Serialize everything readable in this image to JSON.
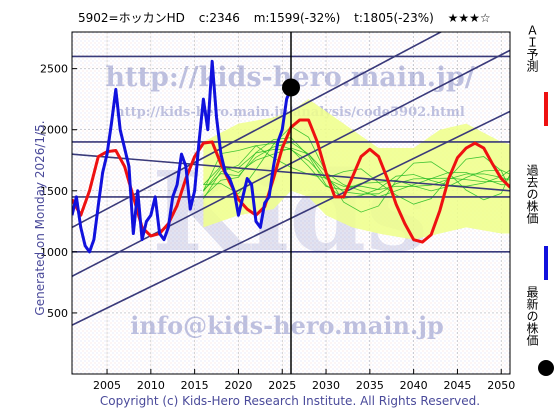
{
  "header": {
    "code_name": "5902=ホッカンHD",
    "current": "c:2346",
    "middle": "m:1599(-32%)",
    "target": "t:1805(-23%)",
    "rating": "★★★☆"
  },
  "side_note": "Generated on Monday 2026/1/5.",
  "footer": {
    "copyright": "Copyright (c) Kids-Hero Research Institute. All Rights Reserved."
  },
  "watermarks": {
    "url1": "http://kids-hero.main.jp/",
    "url2": "http://kids-hero.main.jp/analysis/code5902.html",
    "email": "info@kids-hero.main.jp",
    "big": "Kids"
  },
  "legend": {
    "ai_label": "ＡＩ予測",
    "past_label": "過去の株価",
    "latest_label": "最新の株価"
  },
  "colors": {
    "ai": "#ee1111",
    "past": "#1111dd",
    "ensemble": "#22bb22",
    "band": "#eeff88",
    "trend": "#3a3a7a",
    "grid": "#aaaaaa"
  },
  "chart_data": {
    "type": "line",
    "xlim": [
      2001,
      2051
    ],
    "ylim": [
      0,
      2800
    ],
    "x_ticks": [
      2005,
      2010,
      2015,
      2020,
      2025,
      2030,
      2035,
      2040,
      2045,
      2050
    ],
    "y_ticks": [
      500,
      1000,
      1500,
      2000,
      2500
    ],
    "grid": true,
    "current_marker": {
      "x": 2026.0,
      "y": 2346
    },
    "current_date_line": 2026.0,
    "horizontal_levels": [
      2600,
      1900,
      1450,
      1000
    ],
    "trend_lines": [
      {
        "x": [
          2001,
          2051
        ],
        "y": [
          1200,
          3100
        ]
      },
      {
        "x": [
          2001,
          2051
        ],
        "y": [
          800,
          2650
        ]
      },
      {
        "x": [
          2001,
          2051
        ],
        "y": [
          400,
          2150
        ]
      },
      {
        "x": [
          2001,
          2051
        ],
        "y": [
          1800,
          1500
        ]
      }
    ],
    "band": {
      "x": [
        2016,
        2020,
        2024,
        2026,
        2028,
        2030,
        2033,
        2036,
        2040,
        2043,
        2046,
        2050,
        2051
      ],
      "upper": [
        1900,
        2050,
        2100,
        2150,
        2250,
        2150,
        2000,
        1850,
        1850,
        2000,
        2050,
        1900,
        1880
      ],
      "lower": [
        1200,
        1300,
        1350,
        1500,
        1450,
        1300,
        1200,
        1150,
        1100,
        1150,
        1200,
        1150,
        1150
      ]
    },
    "ensemble_mean": {
      "x": [
        2016,
        2018,
        2020,
        2022,
        2024,
        2026,
        2028,
        2030,
        2032,
        2034,
        2036,
        2038,
        2040,
        2042,
        2044,
        2046,
        2048,
        2050,
        2051
      ],
      "y": [
        1550,
        1700,
        1650,
        1750,
        1800,
        1850,
        1800,
        1650,
        1550,
        1500,
        1450,
        1500,
        1550,
        1600,
        1650,
        1650,
        1600,
        1550,
        1550
      ]
    },
    "series": [
      {
        "name": "ＡＩ予測",
        "x": [
          2001,
          2002,
          2003,
          2004,
          2005,
          2006,
          2007,
          2008,
          2009,
          2010,
          2011,
          2012,
          2013,
          2014,
          2015,
          2016,
          2017,
          2018,
          2019,
          2020,
          2021,
          2022,
          2023,
          2024,
          2025,
          2026,
          2027,
          2028,
          2029,
          2030,
          2031,
          2032,
          2033,
          2034,
          2035,
          2036,
          2037,
          2038,
          2039,
          2040,
          2041,
          2042,
          2043,
          2044,
          2045,
          2046,
          2047,
          2048,
          2049,
          2050,
          2051
        ],
        "y": [
          1430,
          1300,
          1500,
          1780,
          1820,
          1830,
          1700,
          1450,
          1200,
          1130,
          1150,
          1230,
          1380,
          1600,
          1780,
          1890,
          1900,
          1720,
          1570,
          1430,
          1350,
          1300,
          1370,
          1600,
          1850,
          2020,
          2080,
          2080,
          1900,
          1650,
          1450,
          1450,
          1610,
          1780,
          1840,
          1780,
          1600,
          1390,
          1230,
          1100,
          1080,
          1140,
          1340,
          1600,
          1770,
          1850,
          1890,
          1850,
          1720,
          1600,
          1530
        ]
      },
      {
        "name": "過去の株価",
        "x": [
          2001,
          2001.5,
          2002,
          2002.5,
          2003,
          2003.5,
          2004,
          2004.5,
          2005,
          2005.5,
          2006,
          2006.5,
          2007,
          2007.5,
          2008,
          2008.5,
          2009,
          2009.5,
          2010,
          2010.5,
          2011,
          2011.5,
          2012,
          2012.5,
          2013,
          2013.5,
          2014,
          2014.5,
          2015,
          2015.5,
          2016,
          2016.5,
          2017,
          2017.5,
          2018,
          2018.5,
          2019,
          2019.5,
          2020,
          2020.5,
          2021,
          2021.5,
          2022,
          2022.5,
          2023,
          2023.5,
          2024,
          2024.5,
          2025,
          2025.5,
          2026
        ],
        "y": [
          1300,
          1450,
          1200,
          1050,
          1000,
          1100,
          1380,
          1650,
          1800,
          2050,
          2330,
          2000,
          1850,
          1700,
          1150,
          1500,
          1100,
          1250,
          1300,
          1450,
          1150,
          1100,
          1200,
          1450,
          1550,
          1800,
          1700,
          1350,
          1500,
          1900,
          2250,
          2000,
          2560,
          2100,
          1800,
          1650,
          1600,
          1500,
          1300,
          1450,
          1600,
          1550,
          1250,
          1200,
          1400,
          1450,
          1700,
          1900,
          2000,
          2250,
          2346
        ]
      }
    ]
  }
}
